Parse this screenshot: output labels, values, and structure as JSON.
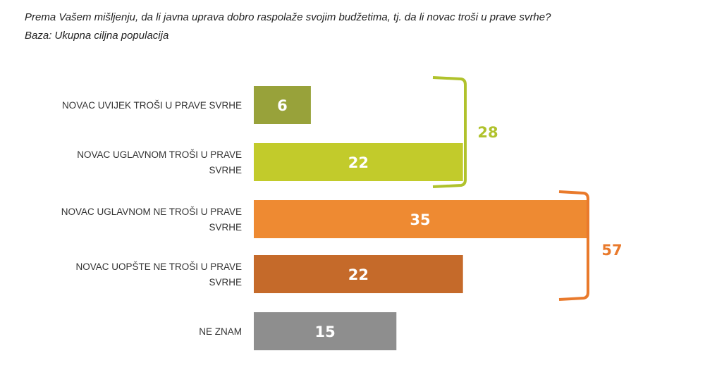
{
  "chart_data": {
    "type": "bar",
    "orientation": "horizontal",
    "title": "Prema Vašem mišljenju, da li javna uprava dobro raspolaže svojim budžetima, tj. da li novac troši u prave svrhe?",
    "subtitle": "Baza: Ukupna ciljna populacija",
    "categories": [
      [
        "NOVAC UVIJEK TROŠI U PRAVE SVRHE"
      ],
      [
        "NOVAC UGLAVNOM TROŠI U PRAVE",
        "SVRHE"
      ],
      [
        "NOVAC UGLAVNOM NE TROŠI U PRAVE",
        "SVRHE"
      ],
      [
        "NOVAC UOPŠTE NE TROŠI U PRAVE",
        "SVRHE"
      ],
      [
        "NE ZNAM"
      ]
    ],
    "values": [
      6,
      22,
      35,
      22,
      15
    ],
    "colors": [
      "#98a23a",
      "#c2cb2b",
      "#ee8a32",
      "#c56a2a",
      "#8e8e8e"
    ],
    "groups": [
      {
        "label": "28",
        "from": 0,
        "to": 1,
        "color": "#b0c22c"
      },
      {
        "label": "57",
        "from": 2,
        "to": 3,
        "color": "#e97a2c"
      }
    ],
    "xlim": [
      0,
      35
    ],
    "grid": false,
    "axes_visible": false
  }
}
